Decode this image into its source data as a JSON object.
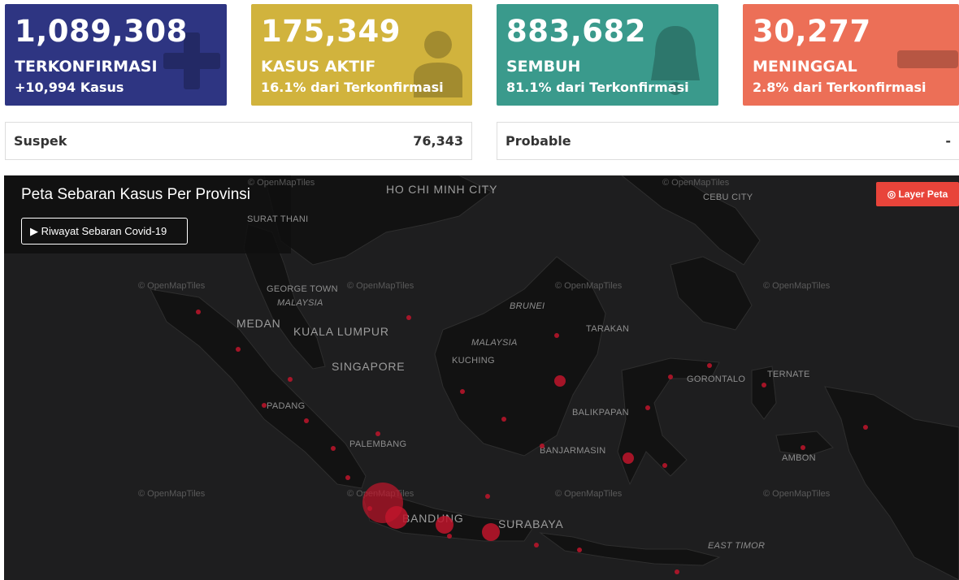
{
  "cards": [
    {
      "value": "1,089,308",
      "label": "TERKONFIRMASI",
      "sub": "+10,994 Kasus",
      "color": "#2e3582",
      "icon": "plus-icon"
    },
    {
      "value": "175,349",
      "label": "KASUS AKTIF",
      "sub": "16.1% dari Terkonfirmasi",
      "color": "#d1b33d",
      "icon": "doctor-icon"
    },
    {
      "value": "883,682",
      "label": "SEMBUH",
      "sub": "81.1% dari Terkonfirmasi",
      "color": "#3a9a8c",
      "icon": "bell-icon"
    },
    {
      "value": "30,277",
      "label": "MENINGGAL",
      "sub": "2.8% dari Terkonfirmasi",
      "color": "#ec6f57",
      "icon": "minus-icon"
    }
  ],
  "stats": {
    "suspek": {
      "label": "Suspek",
      "value": "76,343"
    },
    "probable": {
      "label": "Probable",
      "value": "-"
    }
  },
  "map": {
    "title": "Peta Sebaran Kasus Per Provinsi",
    "history_button": "▶ Riwayat Sebaran Covid-19",
    "layer_button": "◎ Layer Peta",
    "attribution": "© OpenMapTiles",
    "cities": {
      "ho_chi_minh": "HO CHI MINH CITY",
      "surat_thani": "SURAT THANI",
      "cebu": "CEBU CITY",
      "george_town": "GEORGE TOWN",
      "malaysia1": "MALAYSIA",
      "medan": "MEDAN",
      "kuala_lumpur": "KUALA LUMPUR",
      "singapore": "SINGAPORE",
      "brunei": "BRUNEI",
      "tarakan": "TARAKAN",
      "malaysia2": "MALAYSIA",
      "kuching": "KUCHING",
      "gorontalo": "GORONTALO",
      "ternate": "TERNATE",
      "padang": "PADANG",
      "balikpapan": "BALIKPAPAN",
      "palembang": "PALEMBANG",
      "banjarmasin": "BANJARMASIN",
      "ambon": "AMBON",
      "bandung": "BANDUNG",
      "surabaya": "SURABAYA",
      "east_timor": "EAST TIMOR"
    }
  }
}
